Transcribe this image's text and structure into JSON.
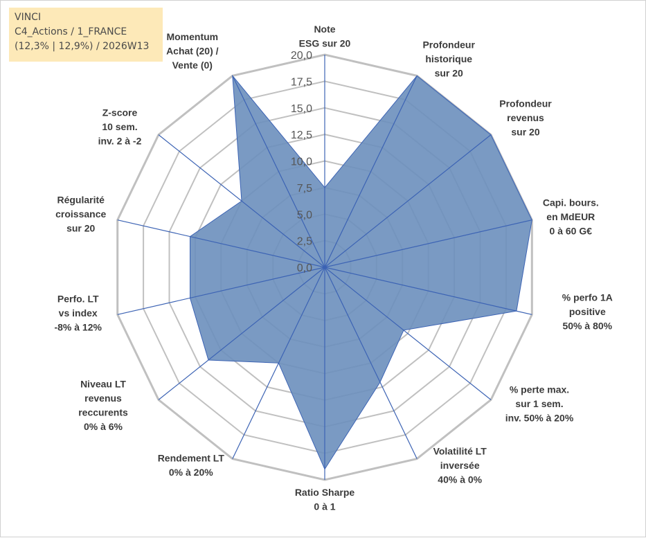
{
  "info": {
    "line1": "VINCI",
    "line2": "C4_Actions / 1_FRANCE",
    "line3": "(12,3% | 12,9%) / 2026W13"
  },
  "colors": {
    "fill": "#6b8fbc",
    "series_line": "#3c63b4",
    "grid": "#c0c0c0",
    "spoke": "#3c63b4",
    "infobox_bg": "#fde9b8"
  },
  "chart_data": {
    "type": "radar",
    "title": "",
    "axis_range": [
      0,
      20
    ],
    "tick_step": 2.5,
    "tick_labels": [
      "0,0",
      "2,5",
      "5,0",
      "7,5",
      "10,0",
      "12,5",
      "15,0",
      "17,5",
      "20,0"
    ],
    "axes": [
      {
        "label": [
          "Note",
          "ESG sur 20"
        ],
        "value": 7.5
      },
      {
        "label": [
          "Profondeur",
          "historique",
          "sur 20"
        ],
        "value": 20
      },
      {
        "label": [
          "Profondeur",
          "revenus",
          "sur 20"
        ],
        "value": 20
      },
      {
        "label": [
          "Capi. bours.",
          "en MdEUR",
          "0 à 60 G€"
        ],
        "value": 20
      },
      {
        "label": [
          "% perfo 1A",
          "positive",
          "50% à 80%"
        ],
        "value": 18.5
      },
      {
        "label": [
          "% perte max.",
          "sur 1 sem.",
          "inv. 50% à 20%"
        ],
        "value": 9.5
      },
      {
        "label": [
          "Volatilité LT",
          "inversée",
          "40% à 0%"
        ],
        "value": 12
      },
      {
        "label": [
          "Ratio Sharpe",
          "0 à 1"
        ],
        "value": 19
      },
      {
        "label": [
          "Rendement LT",
          "0% à 20%"
        ],
        "value": 10
      },
      {
        "label": [
          "Niveau LT",
          "revenus",
          "reccurents",
          "0% à 6%"
        ],
        "value": 14
      },
      {
        "label": [
          "Perfo. LT",
          "vs index",
          "-8% à 12%"
        ],
        "value": 13
      },
      {
        "label": [
          "Régularité",
          "croissance",
          "sur 20"
        ],
        "value": 13
      },
      {
        "label": [
          "Z-score",
          "10 sem.",
          "inv. 2 à -2"
        ],
        "value": 10
      },
      {
        "label": [
          "Momentum",
          "Achat (20) /",
          "Vente (0)"
        ],
        "value": 20
      }
    ],
    "series": [
      {
        "name": "VINCI"
      }
    ]
  }
}
